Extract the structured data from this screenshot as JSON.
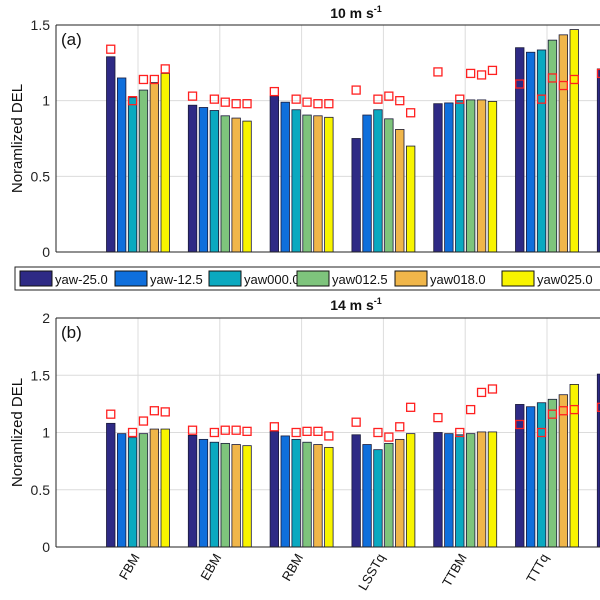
{
  "legend": [
    "yaw-25.0",
    "yaw-12.5",
    "yaw000.0",
    "yaw012.5",
    "yaw018.0",
    "yaw025.0"
  ],
  "colors": [
    "#2e2a85",
    "#0f6fdc",
    "#0aa9c0",
    "#7ec47c",
    "#f0b64a",
    "#f8f400"
  ],
  "marker_color": "#ff2020",
  "chart_data": [
    {
      "type": "bar",
      "panel_label": "(a)",
      "title": "10 m s",
      "title_sup": "-1",
      "ylabel": "Noramlized DEL",
      "ylim": [
        0,
        1.5
      ],
      "yticks": [
        "0",
        "0.5",
        "1",
        "1.5"
      ],
      "ytick_values": [
        0,
        0.5,
        1,
        1.5
      ],
      "grid": true,
      "categories": [
        "FBM",
        "EBM",
        "RBM",
        "LSSTq",
        "TTBM",
        "TTTq",
        ""
      ],
      "series": [
        {
          "name": "yaw-25.0",
          "values": [
            1.29,
            0.97,
            1.03,
            0.75,
            0.98,
            1.35,
            1.21
          ]
        },
        {
          "name": "yaw-12.5",
          "values": [
            1.15,
            0.955,
            0.99,
            0.905,
            0.985,
            1.32,
            null
          ]
        },
        {
          "name": "yaw000.0",
          "values": [
            1.02,
            0.935,
            0.94,
            0.94,
            1.0,
            1.335,
            null
          ]
        },
        {
          "name": "yaw012.5",
          "values": [
            1.07,
            0.9,
            0.905,
            0.88,
            1.005,
            1.4,
            null
          ]
        },
        {
          "name": "yaw018.0",
          "values": [
            1.12,
            0.885,
            0.9,
            0.81,
            1.005,
            1.435,
            null
          ]
        },
        {
          "name": "yaw025.0",
          "values": [
            1.18,
            0.865,
            0.89,
            0.7,
            0.995,
            1.47,
            null
          ]
        }
      ],
      "markers": [
        [
          1.34,
          null,
          1.0,
          1.14,
          1.14,
          1.21
        ],
        [
          1.03,
          null,
          1.01,
          0.99,
          0.98,
          0.98
        ],
        [
          1.06,
          null,
          1.01,
          0.99,
          0.98,
          0.98
        ],
        [
          1.07,
          null,
          1.01,
          1.03,
          1.0,
          0.92
        ],
        [
          1.19,
          null,
          1.01,
          1.18,
          1.17,
          1.2
        ],
        [
          1.11,
          null,
          1.01,
          1.15,
          1.1,
          1.14
        ],
        [
          1.18,
          null,
          null,
          null,
          null,
          null
        ]
      ]
    },
    {
      "type": "bar",
      "panel_label": "(b)",
      "title": "14 m s",
      "title_sup": "-1",
      "ylabel": "Noramlized DEL",
      "ylim": [
        0,
        2
      ],
      "yticks": [
        "0",
        "0.5",
        "1",
        "1.5",
        "2"
      ],
      "ytick_values": [
        0,
        0.5,
        1,
        1.5,
        2
      ],
      "grid": true,
      "categories": [
        "FBM",
        "EBM",
        "RBM",
        "LSSTq",
        "TTBM",
        "TTTq",
        ""
      ],
      "series": [
        {
          "name": "yaw-25.0",
          "values": [
            1.08,
            0.975,
            1.01,
            0.98,
            1.0,
            1.245,
            1.51
          ]
        },
        {
          "name": "yaw-12.5",
          "values": [
            0.99,
            0.94,
            0.97,
            0.895,
            0.99,
            1.225,
            null
          ]
        },
        {
          "name": "yaw000.0",
          "values": [
            0.955,
            0.915,
            0.94,
            0.85,
            0.98,
            1.26,
            null
          ]
        },
        {
          "name": "yaw012.5",
          "values": [
            0.99,
            0.905,
            0.915,
            0.905,
            0.99,
            1.29,
            null
          ]
        },
        {
          "name": "yaw018.0",
          "values": [
            1.03,
            0.895,
            0.895,
            0.94,
            1.005,
            1.33,
            null
          ]
        },
        {
          "name": "yaw025.0",
          "values": [
            1.03,
            0.885,
            0.87,
            0.99,
            1.005,
            1.42,
            null
          ]
        }
      ],
      "markers": [
        [
          1.16,
          null,
          1.0,
          1.1,
          1.19,
          1.18
        ],
        [
          1.02,
          null,
          1.0,
          1.02,
          1.02,
          1.01
        ],
        [
          1.05,
          null,
          1.0,
          1.01,
          1.01,
          0.97
        ],
        [
          1.09,
          null,
          1.0,
          0.96,
          1.05,
          1.22
        ],
        [
          1.13,
          null,
          1.0,
          1.2,
          1.35,
          1.38
        ],
        [
          1.07,
          null,
          1.0,
          1.16,
          1.19,
          1.2
        ],
        [
          1.22,
          null,
          null,
          null,
          null,
          null
        ]
      ]
    }
  ]
}
